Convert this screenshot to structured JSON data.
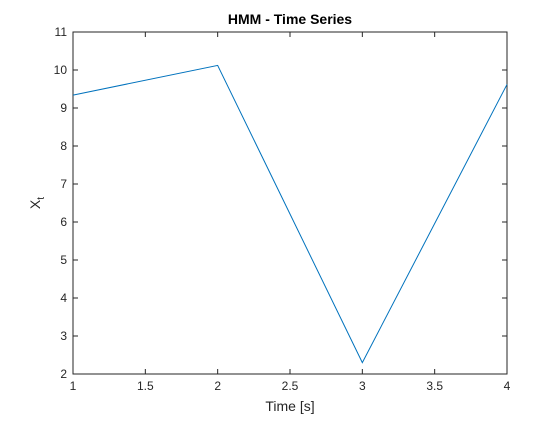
{
  "chart_data": {
    "type": "line",
    "title": "HMM - Time Series",
    "xlabel": "Time [s]",
    "ylabel": "X",
    "ylabel_subscript": "t",
    "xlim": [
      1,
      4
    ],
    "ylim": [
      2,
      11
    ],
    "xticks": [
      1,
      1.5,
      2,
      2.5,
      3,
      3.5,
      4
    ],
    "xtick_labels": [
      "1",
      "1.5",
      "2",
      "2.5",
      "3",
      "3.5",
      "4"
    ],
    "yticks": [
      2,
      3,
      4,
      5,
      6,
      7,
      8,
      9,
      10,
      11
    ],
    "ytick_labels": [
      "2",
      "3",
      "4",
      "5",
      "6",
      "7",
      "8",
      "9",
      "10",
      "11"
    ],
    "grid": true,
    "series": [
      {
        "color": "#0072bd",
        "x": [
          1,
          2,
          3,
          4
        ],
        "y": [
          9.34,
          10.12,
          2.3,
          9.62
        ]
      }
    ]
  }
}
